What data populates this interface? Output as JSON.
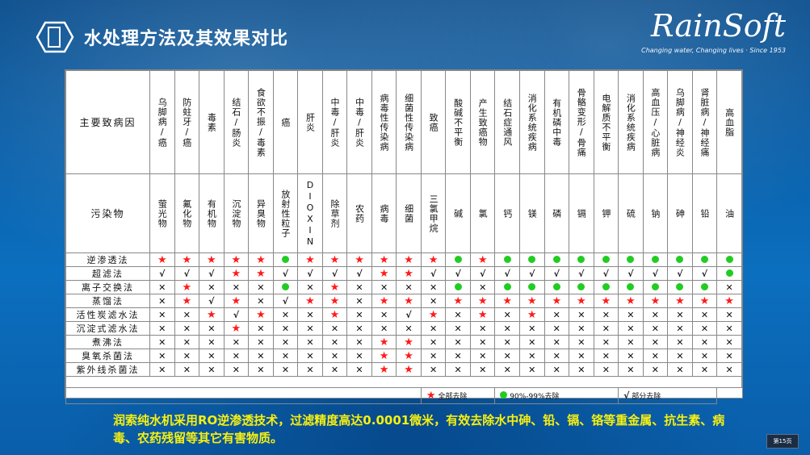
{
  "slide_title": "水处理方法及其效果对比",
  "brand": {
    "name": "RainSoft",
    "tagline": "Changing water, Changing lives",
    "since": "Since 1953"
  },
  "table": {
    "header_disease_label": "主要致病因",
    "header_pollutant_label": "污染物",
    "columns": [
      {
        "disease": "乌脚病/癌",
        "pollutant": "萤光物"
      },
      {
        "disease": "防蛀牙/癌",
        "pollutant": "氟化物"
      },
      {
        "disease": "毒素",
        "pollutant": "有机物"
      },
      {
        "disease": "结石/肠炎",
        "pollutant": "沉淀物"
      },
      {
        "disease": "食欲不振/毒素",
        "pollutant": "异臭物"
      },
      {
        "disease": "癌",
        "pollutant": "放射性粒子"
      },
      {
        "disease": "肝炎",
        "pollutant": "DIOXIN"
      },
      {
        "disease": "中毒/肝炎",
        "pollutant": "除草剂"
      },
      {
        "disease": "中毒/肝炎",
        "pollutant": "农药"
      },
      {
        "disease": "病毒性传染病",
        "pollutant": "病毒"
      },
      {
        "disease": "细菌性传染病",
        "pollutant": "细菌"
      },
      {
        "disease": "致癌",
        "pollutant": "三氯甲烷"
      },
      {
        "disease": "酸碱不平衡",
        "pollutant": "碱"
      },
      {
        "disease": "产生致癌物",
        "pollutant": "氯"
      },
      {
        "disease": "结石症通风",
        "pollutant": "钙"
      },
      {
        "disease": "消化系统疾病",
        "pollutant": "镁"
      },
      {
        "disease": "有机磷中毒",
        "pollutant": "磷"
      },
      {
        "disease": "骨骼变形/骨痛",
        "pollutant": "镉"
      },
      {
        "disease": "电解质不平衡",
        "pollutant": "钾"
      },
      {
        "disease": "消化系统疾病",
        "pollutant": "硫"
      },
      {
        "disease": "高血压/心脏病",
        "pollutant": "钠"
      },
      {
        "disease": "乌脚病/神经炎",
        "pollutant": "砷"
      },
      {
        "disease": "肾脏病/神经痛",
        "pollutant": "铅"
      },
      {
        "disease": "高血脂",
        "pollutant": "油"
      }
    ],
    "methods": [
      {
        "name": "逆渗透法",
        "cells": [
          "S",
          "S",
          "S",
          "S",
          "S",
          "D",
          "S",
          "S",
          "S",
          "S",
          "S",
          "S",
          "D",
          "S",
          "D",
          "D",
          "D",
          "D",
          "D",
          "D",
          "D",
          "D",
          "D",
          "D"
        ]
      },
      {
        "name": "超滤法",
        "cells": [
          "C",
          "C",
          "C",
          "S",
          "S",
          "C",
          "C",
          "C",
          "C",
          "S",
          "S",
          "C",
          "C",
          "C",
          "C",
          "C",
          "C",
          "C",
          "C",
          "C",
          "C",
          "C",
          "C",
          "D"
        ]
      },
      {
        "name": "离子交换法",
        "cells": [
          "X",
          "S",
          "X",
          "X",
          "X",
          "D",
          "X",
          "S",
          "X",
          "X",
          "X",
          "X",
          "D",
          "X",
          "D",
          "D",
          "D",
          "D",
          "D",
          "D",
          "D",
          "D",
          "D",
          "X"
        ]
      },
      {
        "name": "蒸馏法",
        "cells": [
          "X",
          "S",
          "C",
          "S",
          "X",
          "C",
          "S",
          "S",
          "X",
          "S",
          "S",
          "X",
          "S",
          "S",
          "S",
          "S",
          "S",
          "S",
          "S",
          "S",
          "S",
          "S",
          "S",
          "S"
        ]
      },
      {
        "name": "活性炭滤水法",
        "cells": [
          "X",
          "X",
          "S",
          "C",
          "S",
          "X",
          "X",
          "S",
          "X",
          "X",
          "C",
          "S",
          "X",
          "S",
          "X",
          "S",
          "X",
          "X",
          "X",
          "X",
          "X",
          "X",
          "X",
          "X"
        ]
      },
      {
        "name": "沉淀式滤水法",
        "cells": [
          "X",
          "X",
          "X",
          "S",
          "X",
          "X",
          "X",
          "X",
          "X",
          "X",
          "X",
          "X",
          "X",
          "X",
          "X",
          "X",
          "X",
          "X",
          "X",
          "X",
          "X",
          "X",
          "X",
          "X"
        ]
      },
      {
        "name": "煮沸法",
        "cells": [
          "X",
          "X",
          "X",
          "X",
          "X",
          "X",
          "X",
          "X",
          "X",
          "S",
          "S",
          "X",
          "X",
          "X",
          "X",
          "X",
          "X",
          "X",
          "X",
          "X",
          "X",
          "X",
          "X",
          "X"
        ]
      },
      {
        "name": "臭氧杀菌法",
        "cells": [
          "X",
          "X",
          "X",
          "X",
          "X",
          "X",
          "X",
          "X",
          "X",
          "S",
          "S",
          "X",
          "X",
          "X",
          "X",
          "X",
          "X",
          "X",
          "X",
          "X",
          "X",
          "X",
          "X",
          "X"
        ]
      },
      {
        "name": "紫外线杀菌法",
        "cells": [
          "X",
          "X",
          "X",
          "X",
          "X",
          "X",
          "X",
          "X",
          "X",
          "S",
          "S",
          "X",
          "X",
          "X",
          "X",
          "X",
          "X",
          "X",
          "X",
          "X",
          "X",
          "X",
          "X",
          "X"
        ]
      }
    ],
    "legend": {
      "full_label": "全部去除",
      "partial_pct_label": "90%-99%去除",
      "partial_label": "部分去除"
    }
  },
  "caption": "润索纯水机采用RO逆渗透技术，过滤精度高达0.0001微米，有效去除水中砷、铅、镉、铬等重金属、抗生素、病毒、农药残留等其它有害物质。",
  "page_number": "第15页",
  "colors": {
    "star": "#ff1a1a",
    "dot": "#22cc22",
    "caption": "#f7f010"
  }
}
